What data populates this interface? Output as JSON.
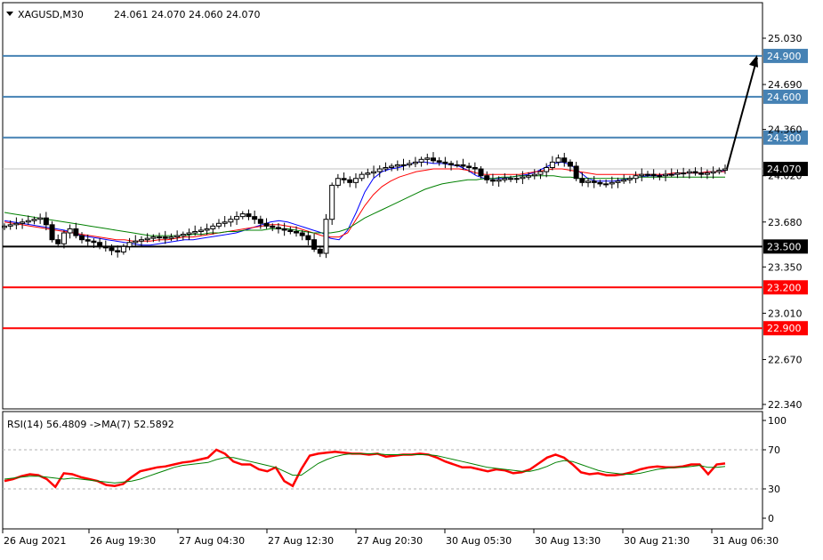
{
  "header": {
    "symbol": "XAGUSD,M30",
    "ohlc": "24.061 24.070 24.060 24.070"
  },
  "rsi_header": "RSI(14) 56.4809  ->MA(7) 52.5892",
  "colors": {
    "resistance": "#4682b4",
    "support": "#000000",
    "stop": "#ff0000",
    "ma_fast": "#0000ff",
    "ma_mid": "#ff0000",
    "ma_slow": "#008000",
    "rsi_line": "#ff0000",
    "rsi_ma": "#008000"
  },
  "chart_data": [
    {
      "type": "candlestick",
      "title": "XAGUSD,M30",
      "ylim": [
        22.3,
        25.3
      ],
      "y_ticks": [
        "25.030",
        "24.690",
        "24.360",
        "24.020",
        "23.680",
        "23.350",
        "23.010",
        "22.670",
        "22.340"
      ],
      "x_ticks": [
        "26 Aug 2021",
        "26 Aug 19:30",
        "27 Aug 04:30",
        "27 Aug 12:30",
        "27 Aug 20:30",
        "30 Aug 05:30",
        "30 Aug 13:30",
        "30 Aug 21:30",
        "31 Aug 06:30"
      ],
      "current_price": "24.070",
      "levels": [
        {
          "value": 24.9,
          "label": "24.900",
          "kind": "resistance"
        },
        {
          "value": 24.6,
          "label": "24.600",
          "kind": "resistance"
        },
        {
          "value": 24.3,
          "label": "24.300",
          "kind": "resistance"
        },
        {
          "value": 23.5,
          "label": "23.500",
          "kind": "support"
        },
        {
          "value": 23.2,
          "label": "23.200",
          "kind": "stop"
        },
        {
          "value": 22.9,
          "label": "22.900",
          "kind": "stop"
        }
      ],
      "forecast_arrow": {
        "from": 24.07,
        "to": 24.9
      },
      "closes": [
        23.65,
        23.66,
        23.67,
        23.68,
        23.69,
        23.7,
        23.71,
        23.66,
        23.55,
        23.52,
        23.6,
        23.63,
        23.58,
        23.55,
        23.54,
        23.53,
        23.5,
        23.49,
        23.47,
        23.46,
        23.5,
        23.53,
        23.54,
        23.55,
        23.56,
        23.57,
        23.57,
        23.56,
        23.57,
        23.58,
        23.59,
        23.6,
        23.61,
        23.62,
        23.63,
        23.65,
        23.67,
        23.68,
        23.7,
        23.72,
        23.74,
        23.72,
        23.7,
        23.67,
        23.65,
        23.64,
        23.63,
        23.62,
        23.61,
        23.6,
        23.58,
        23.55,
        23.48,
        23.45,
        23.7,
        23.95,
        24.0,
        23.99,
        23.97,
        24.0,
        24.03,
        24.04,
        24.05,
        24.07,
        24.08,
        24.09,
        24.1,
        24.1,
        24.11,
        24.12,
        24.14,
        24.15,
        24.13,
        24.12,
        24.11,
        24.1,
        24.1,
        24.09,
        24.08,
        24.07,
        24.02,
        23.99,
        23.98,
        23.99,
        24.0,
        24.0,
        24.0,
        24.01,
        24.02,
        24.03,
        24.05,
        24.08,
        24.12,
        24.15,
        24.12,
        24.09,
        24.0,
        23.97,
        23.98,
        23.97,
        23.96,
        23.96,
        23.97,
        23.98,
        23.99,
        24.0,
        24.02,
        24.03,
        24.03,
        24.02,
        24.02,
        24.03,
        24.03,
        24.04,
        24.04,
        24.05,
        24.04,
        24.03,
        24.04,
        24.05,
        24.06,
        24.07
      ],
      "series": [
        {
          "name": "MA fast",
          "values": [
            23.69,
            23.68,
            23.67,
            23.66,
            23.65,
            23.64,
            23.63,
            23.62,
            23.6,
            23.58,
            23.57,
            23.56,
            23.55,
            23.54,
            23.53,
            23.52,
            23.51,
            23.51,
            23.52,
            23.53,
            23.54,
            23.55,
            23.55,
            23.56,
            23.57,
            23.58,
            23.59,
            23.6,
            23.62,
            23.64,
            23.66,
            23.68,
            23.69,
            23.68,
            23.66,
            23.64,
            23.62,
            23.6,
            23.56,
            23.55,
            23.62,
            23.75,
            23.9,
            24.0,
            24.05,
            24.07,
            24.08,
            24.1,
            24.12,
            24.12,
            24.11,
            24.11,
            24.1,
            24.09,
            24.06,
            24.02,
            24.0,
            24.0,
            24.0,
            24.01,
            24.02,
            24.03,
            24.05,
            24.08,
            24.11,
            24.12,
            24.1,
            24.05,
            24.0,
            23.98,
            23.98,
            23.98,
            23.99,
            24.0,
            24.01,
            24.02,
            24.02,
            24.03,
            24.03,
            24.04,
            24.04,
            24.04,
            24.05,
            24.05,
            24.06
          ]
        },
        {
          "name": "MA mid",
          "values": [
            23.68,
            23.67,
            23.66,
            23.65,
            23.64,
            23.63,
            23.62,
            23.61,
            23.6,
            23.59,
            23.58,
            23.57,
            23.56,
            23.55,
            23.55,
            23.54,
            23.54,
            23.54,
            23.55,
            23.55,
            23.56,
            23.57,
            23.57,
            23.58,
            23.59,
            23.6,
            23.61,
            23.62,
            23.63,
            23.64,
            23.65,
            23.66,
            23.66,
            23.65,
            23.64,
            23.62,
            23.6,
            23.58,
            23.57,
            23.57,
            23.6,
            23.7,
            23.8,
            23.88,
            23.94,
            23.98,
            24.01,
            24.03,
            24.05,
            24.06,
            24.07,
            24.07,
            24.07,
            24.07,
            24.06,
            24.04,
            24.03,
            24.03,
            24.03,
            24.03,
            24.03,
            24.04,
            24.05,
            24.06,
            24.07,
            24.07,
            24.06,
            24.05,
            24.04,
            24.03,
            24.03,
            24.03,
            24.03,
            24.03,
            24.03,
            24.03,
            24.03,
            24.03,
            24.04,
            24.04,
            24.04,
            24.04,
            24.05,
            24.05,
            24.05
          ]
        },
        {
          "name": "MA slow",
          "values": [
            23.75,
            23.74,
            23.73,
            23.72,
            23.71,
            23.7,
            23.69,
            23.68,
            23.67,
            23.66,
            23.65,
            23.64,
            23.63,
            23.62,
            23.61,
            23.6,
            23.59,
            23.58,
            23.58,
            23.58,
            23.58,
            23.58,
            23.59,
            23.59,
            23.6,
            23.6,
            23.61,
            23.61,
            23.62,
            23.62,
            23.62,
            23.63,
            23.63,
            23.63,
            23.62,
            23.61,
            23.6,
            23.6,
            23.6,
            23.61,
            23.63,
            23.67,
            23.71,
            23.74,
            23.77,
            23.8,
            23.83,
            23.86,
            23.89,
            23.92,
            23.94,
            23.96,
            23.97,
            23.98,
            23.99,
            23.99,
            24.0,
            24.0,
            24.01,
            24.01,
            24.02,
            24.02,
            24.02,
            24.02,
            24.02,
            24.01,
            24.01,
            24.0,
            24.0,
            24.0,
            24.0,
            24.0,
            24.0,
            24.0,
            24.01,
            24.01,
            24.01,
            24.01,
            24.01,
            24.01,
            24.01,
            24.01,
            24.01,
            24.01,
            24.01
          ]
        }
      ]
    },
    {
      "type": "line",
      "title": "RSI(14) 56.4809  ->MA(7) 52.5892",
      "ylim": [
        0,
        100
      ],
      "y_ticks": [
        "100",
        "70",
        "30",
        "0"
      ],
      "reference_lines": [
        70,
        30
      ],
      "series": [
        {
          "name": "RSI(14)",
          "values": [
            38,
            40,
            43,
            45,
            44,
            40,
            32,
            46,
            45,
            42,
            40,
            38,
            34,
            33,
            35,
            42,
            48,
            50,
            52,
            53,
            55,
            57,
            58,
            60,
            62,
            70,
            66,
            58,
            55,
            55,
            50,
            48,
            52,
            38,
            33,
            50,
            64,
            66,
            67,
            68,
            67,
            66,
            66,
            65,
            66,
            63,
            64,
            65,
            65,
            66,
            65,
            62,
            58,
            55,
            52,
            52,
            50,
            48,
            50,
            49,
            46,
            47,
            50,
            56,
            62,
            65,
            62,
            55,
            47,
            45,
            46,
            44,
            44,
            45,
            47,
            50,
            52,
            53,
            52,
            52,
            53,
            55,
            55,
            45,
            55,
            56
          ]
        },
        {
          "name": "MA(7)",
          "values": [
            40,
            41,
            42,
            43,
            43,
            42,
            41,
            40,
            41,
            40,
            39,
            38,
            37,
            36,
            37,
            38,
            40,
            43,
            46,
            49,
            52,
            54,
            55,
            56,
            57,
            60,
            62,
            62,
            60,
            58,
            56,
            54,
            52,
            48,
            44,
            44,
            50,
            56,
            60,
            63,
            65,
            66,
            66,
            66,
            66,
            65,
            65,
            65,
            65,
            65,
            65,
            64,
            62,
            60,
            58,
            56,
            54,
            52,
            51,
            50,
            49,
            48,
            48,
            50,
            53,
            57,
            59,
            58,
            55,
            52,
            49,
            47,
            46,
            45,
            45,
            46,
            48,
            50,
            51,
            52,
            52,
            53,
            54,
            52,
            52,
            53
          ]
        }
      ]
    }
  ]
}
